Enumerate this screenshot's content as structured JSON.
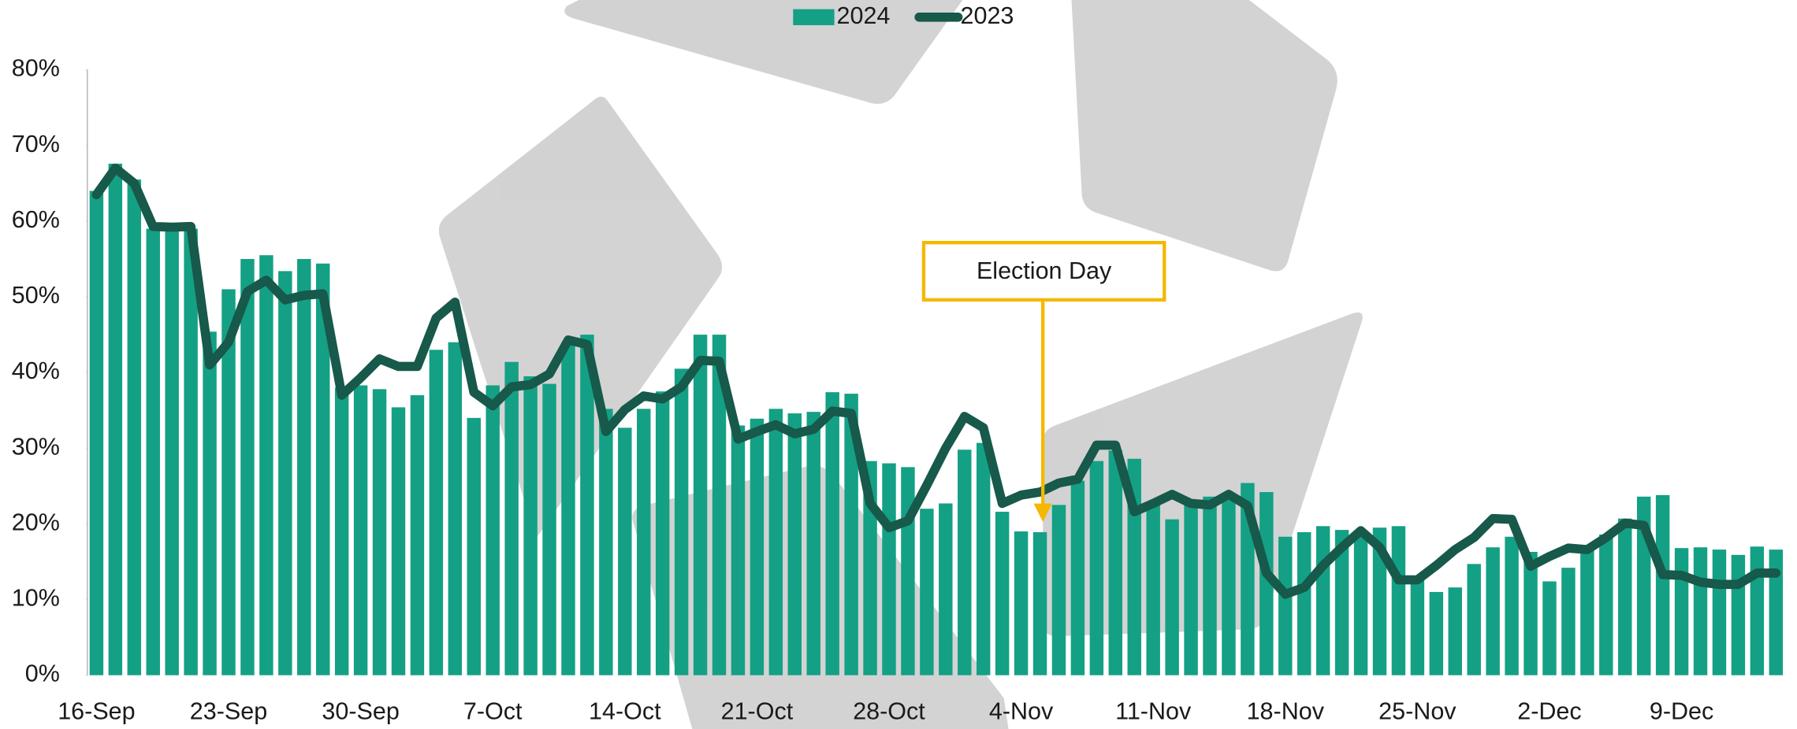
{
  "chart_data": {
    "type": "bar_line",
    "categories": [
      "16-Sep",
      null,
      null,
      null,
      null,
      null,
      null,
      "23-Sep",
      null,
      null,
      null,
      null,
      null,
      null,
      "30-Sep",
      null,
      null,
      null,
      null,
      null,
      null,
      "7-Oct",
      null,
      null,
      null,
      null,
      null,
      null,
      "14-Oct",
      null,
      null,
      null,
      null,
      null,
      null,
      "21-Oct",
      null,
      null,
      null,
      null,
      null,
      null,
      "28-Oct",
      null,
      null,
      null,
      null,
      null,
      null,
      "4-Nov",
      null,
      null,
      null,
      null,
      null,
      null,
      "11-Nov",
      null,
      null,
      null,
      null,
      null,
      null,
      "18-Nov",
      null,
      null,
      null,
      null,
      null,
      null,
      "25-Nov",
      null,
      null,
      null,
      null,
      null,
      null,
      "2-Dec",
      null,
      null,
      null,
      null,
      null,
      null,
      "9-Dec",
      null,
      null,
      null,
      null,
      null
    ],
    "series": [
      {
        "name": "2024",
        "kind": "bar",
        "color": "#14a085",
        "values": [
          64,
          67.6,
          65.5,
          59,
          59,
          59,
          45.4,
          51,
          55,
          55.5,
          53.4,
          55,
          54.4,
          38,
          38.3,
          37.8,
          35.4,
          37,
          43,
          44,
          34,
          38.3,
          41.4,
          39.5,
          38.5,
          43.7,
          45,
          35.2,
          32.7,
          35.2,
          37.5,
          40.5,
          45,
          45,
          33,
          33.9,
          35.2,
          34.6,
          34.8,
          37.4,
          37.2,
          28.3,
          28,
          27.5,
          22,
          22.7,
          29.8,
          30.7,
          21.6,
          19,
          18.9,
          22.5,
          25.7,
          28.3,
          29.7,
          28.6,
          22.8,
          20.6,
          22.7,
          23.6,
          24,
          25.4,
          24.2,
          18.3,
          18.9,
          19.7,
          19.2,
          18.3,
          19.5,
          19.7,
          13,
          11,
          11.6,
          14.7,
          16.9,
          18.3,
          16.3,
          12.4,
          14.2,
          16.9,
          18.6,
          20.7,
          23.6,
          23.8,
          16.8,
          16.9,
          16.6,
          15.9,
          17,
          16.6
        ]
      },
      {
        "name": "2023",
        "kind": "line",
        "color": "#17594a",
        "values": [
          63.5,
          67,
          65,
          59.3,
          59.2,
          59.3,
          41,
          44,
          50.7,
          52.2,
          49.6,
          50.2,
          50.4,
          37,
          39.3,
          41.8,
          40.8,
          40.8,
          47.2,
          49.3,
          37.4,
          35.6,
          38.1,
          38.4,
          39.8,
          44.3,
          43.7,
          32.2,
          35.1,
          36.9,
          36.5,
          38.1,
          41.6,
          41.5,
          31.2,
          32.2,
          33.1,
          31.9,
          32.5,
          34.9,
          34.6,
          22.7,
          19.5,
          20.4,
          25.1,
          30,
          34.2,
          32.7,
          22.7,
          23.8,
          24.2,
          25.4,
          25.9,
          30.4,
          30.4,
          21.6,
          22.7,
          23.9,
          22.7,
          22.5,
          23.9,
          22.4,
          13.5,
          10.7,
          11.6,
          14.5,
          16.9,
          19.1,
          16.9,
          12.6,
          12.6,
          14.5,
          16.6,
          18.2,
          20.7,
          20.6,
          14.4,
          15.7,
          16.8,
          16.6,
          18.2,
          20.1,
          19.8,
          13.3,
          13.2,
          12.3,
          12,
          12,
          13.5,
          13.5
        ]
      }
    ],
    "ylim": [
      0,
      80
    ],
    "yticks": [
      {
        "value": 0,
        "label": "0%"
      },
      {
        "value": 10,
        "label": "10%"
      },
      {
        "value": 20,
        "label": "20%"
      },
      {
        "value": 30,
        "label": "30%"
      },
      {
        "value": 40,
        "label": "40%"
      },
      {
        "value": 50,
        "label": "50%"
      },
      {
        "value": 60,
        "label": "60%"
      },
      {
        "value": 70,
        "label": "70%"
      },
      {
        "value": 80,
        "label": "80%"
      }
    ],
    "grid": false,
    "legend": "top",
    "annotations": [
      {
        "text": "Election Day",
        "color": "#f5b800"
      }
    ]
  }
}
